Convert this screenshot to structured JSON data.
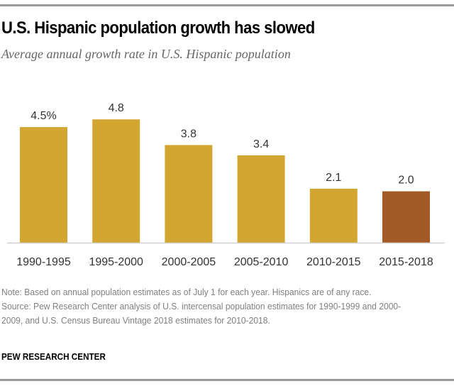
{
  "chart_data": {
    "type": "bar",
    "title": "U.S. Hispanic population growth has slowed",
    "subtitle": "Average annual growth rate in U.S. Hispanic population",
    "xlabel": "",
    "ylabel": "",
    "ylim": [
      0,
      5
    ],
    "grid": false,
    "categories": [
      "1990-1995",
      "1995-2000",
      "2000-2005",
      "2005-2010",
      "2010-2015",
      "2015-2018"
    ],
    "values": [
      4.5,
      4.8,
      3.8,
      3.4,
      2.1,
      2.0
    ],
    "data_labels": [
      "4.5%",
      "4.8",
      "3.8",
      "3.4",
      "2.1",
      "2.0"
    ],
    "colors": [
      "#d3a631",
      "#d3a631",
      "#d3a631",
      "#d3a631",
      "#d3a631",
      "#a45a26"
    ],
    "highlight_index": 5
  },
  "colors": {
    "bar": "#d3a631",
    "highlight": "#a45a26",
    "baseline": "#d0d0d0",
    "label": "#333333",
    "rule": "#999999"
  },
  "header": {
    "title": "U.S. Hispanic population growth has slowed",
    "subtitle": "Average annual growth rate in U.S. Hispanic population"
  },
  "footer": {
    "note": "Note: Based on annual population estimates as of July 1 for each year. Hispanics are of any race.",
    "source": "Source: Pew Research Center analysis of U.S. intercensal population estimates for 1990-1999 and 2000-2009, and U.S. Census Bureau Vintage 2018 estimates for 2010-2018.",
    "credit": "PEW RESEARCH CENTER"
  }
}
